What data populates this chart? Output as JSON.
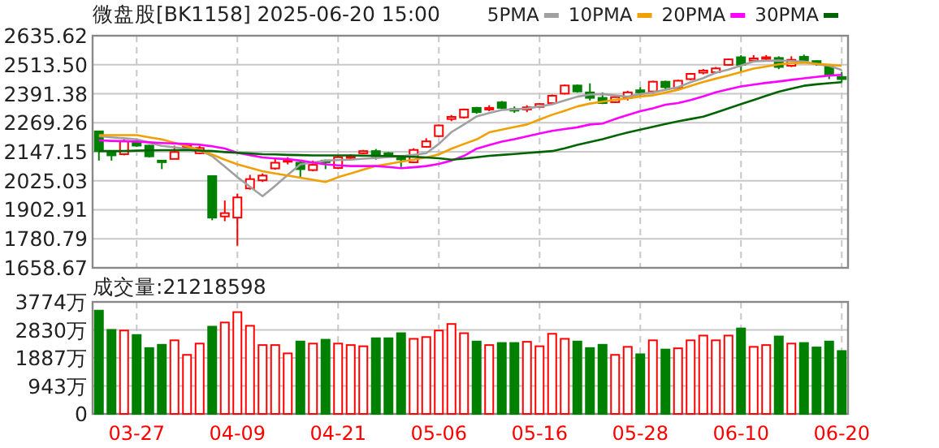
{
  "chart_data": [
    {
      "type": "candlestick",
      "title": "微盘股[BK1158] 2025-06-20 15:00",
      "categories": [
        null,
        null,
        null,
        null,
        null,
        null,
        null,
        null,
        null,
        null,
        null,
        null,
        null,
        null,
        null,
        null,
        null,
        null,
        null,
        null,
        null,
        null,
        null,
        null,
        null,
        null,
        null,
        null,
        null,
        null,
        null,
        null,
        null,
        null,
        null,
        null,
        null,
        null,
        null,
        null,
        null,
        null,
        null,
        null,
        null,
        null,
        null,
        null,
        null,
        null,
        null,
        null,
        null,
        null,
        null,
        null,
        null,
        null,
        null,
        null
      ],
      "ohlc": [
        [
          2233,
          2233,
          2110,
          2150
        ],
        [
          2144,
          2144,
          2110,
          2132
        ],
        [
          2137,
          2200,
          2132,
          2191
        ],
        [
          2191,
          2195,
          2168,
          2173
        ],
        [
          2173,
          2177,
          2123,
          2128
        ],
        [
          2110,
          2110,
          2074,
          2106
        ],
        [
          2117,
          2173,
          2117,
          2146
        ],
        [
          2170,
          2180,
          2166,
          2172
        ],
        [
          2141,
          2173,
          2137,
          2163
        ],
        [
          2045,
          2045,
          1859,
          1870
        ],
        [
          1875,
          1942,
          1855,
          1889
        ],
        [
          1870,
          1971,
          1752,
          1955
        ],
        [
          1993,
          2050,
          1988,
          2032
        ],
        [
          2027,
          2056,
          2020,
          2047
        ],
        [
          2077,
          2117,
          2072,
          2101
        ],
        [
          2106,
          2124,
          2094,
          2112
        ],
        [
          2101,
          2110,
          2038,
          2074
        ],
        [
          2070,
          2110,
          2065,
          2092
        ],
        [
          2110,
          2114,
          2074,
          2106
        ],
        [
          2079,
          2132,
          2074,
          2124
        ],
        [
          2124,
          2137,
          2114,
          2128
        ],
        [
          2141,
          2155,
          2137,
          2150
        ],
        [
          2150,
          2159,
          2114,
          2128
        ],
        [
          2141,
          2146,
          2132,
          2139
        ],
        [
          2124,
          2128,
          2083,
          2115
        ],
        [
          2103,
          2162,
          2099,
          2155
        ],
        [
          2168,
          2204,
          2164,
          2191
        ],
        [
          2213,
          2262,
          2208,
          2258
        ],
        [
          2285,
          2302,
          2276,
          2294
        ],
        [
          2292,
          2329,
          2287,
          2325
        ],
        [
          2332,
          2336,
          2307,
          2314
        ],
        [
          2325,
          2343,
          2318,
          2332
        ],
        [
          2355,
          2361,
          2327,
          2332
        ],
        [
          2327,
          2338,
          2311,
          2323
        ],
        [
          2325,
          2343,
          2314,
          2334
        ],
        [
          2336,
          2352,
          2331,
          2348
        ],
        [
          2352,
          2388,
          2347,
          2383
        ],
        [
          2392,
          2430,
          2388,
          2426
        ],
        [
          2426,
          2430,
          2396,
          2401
        ],
        [
          2397,
          2435,
          2363,
          2374
        ],
        [
          2374,
          2397,
          2348,
          2352
        ],
        [
          2356,
          2381,
          2352,
          2377
        ],
        [
          2374,
          2404,
          2363,
          2397
        ],
        [
          2406,
          2419,
          2383,
          2397
        ],
        [
          2401,
          2446,
          2392,
          2442
        ],
        [
          2442,
          2446,
          2408,
          2419
        ],
        [
          2415,
          2450,
          2406,
          2446
        ],
        [
          2453,
          2479,
          2448,
          2475
        ],
        [
          2480,
          2495,
          2473,
          2489
        ],
        [
          2482,
          2504,
          2477,
          2498
        ],
        [
          2513,
          2540,
          2509,
          2536
        ],
        [
          2545,
          2554,
          2484,
          2513
        ],
        [
          2531,
          2554,
          2527,
          2540
        ],
        [
          2538,
          2554,
          2531,
          2545
        ],
        [
          2542,
          2549,
          2495,
          2504
        ],
        [
          2509,
          2549,
          2504,
          2534
        ],
        [
          2547,
          2556,
          2520,
          2531
        ],
        [
          2529,
          2531,
          2509,
          2522
        ],
        [
          2509,
          2516,
          2453,
          2471
        ],
        [
          2462,
          2482,
          2439,
          2453
        ]
      ],
      "colors": [
        "#008000",
        "#008000",
        "#ff0000",
        "#008000",
        "#008000",
        "#008000",
        "#ff0000",
        "#ff0000",
        "#ff0000",
        "#008000",
        "#ff0000",
        "#ff0000",
        "#ff0000",
        "#ff0000",
        "#ff0000",
        "#ff0000",
        "#008000",
        "#ff0000",
        "#008000",
        "#ff0000",
        "#ff0000",
        "#ff0000",
        "#008000",
        "#008000",
        "#008000",
        "#ff0000",
        "#ff0000",
        "#ff0000",
        "#ff0000",
        "#ff0000",
        "#008000",
        "#ff0000",
        "#008000",
        "#008000",
        "#ff0000",
        "#ff0000",
        "#ff0000",
        "#ff0000",
        "#008000",
        "#008000",
        "#008000",
        "#ff0000",
        "#ff0000",
        "#008000",
        "#ff0000",
        "#008000",
        "#ff0000",
        "#ff0000",
        "#ff0000",
        "#ff0000",
        "#ff0000",
        "#008000",
        "#ff0000",
        "#ff0000",
        "#008000",
        "#ff0000",
        "#008000",
        "#008000",
        "#008000",
        "#008000"
      ],
      "series": [
        {
          "name": "5PMA",
          "type": "line",
          "color": "#a0a0a0",
          "values": [
            2213,
            2208,
            2204,
            2199,
            2186,
            2172,
            2166,
            2160,
            2155,
            2128,
            2085,
            2040,
            2000,
            1960,
            2004,
            2050,
            2094,
            2102,
            2110,
            2112,
            2114,
            2118,
            2121,
            2125,
            2128,
            2134,
            2141,
            2180,
            2230,
            2262,
            2296,
            2310,
            2323,
            2326,
            2329,
            2338,
            2347,
            2363,
            2379,
            2388,
            2390,
            2384,
            2379,
            2390,
            2397,
            2408,
            2419,
            2440,
            2457,
            2480,
            2493,
            2510,
            2527,
            2530,
            2531,
            2529,
            2527,
            2515,
            2509,
            2491
          ]
        },
        {
          "name": "10PMA",
          "type": "line",
          "color": "#f0a000",
          "values": [
            2217,
            2217,
            2217,
            2217,
            2208,
            2199,
            2185,
            2170,
            2155,
            2135,
            2114,
            2094,
            2080,
            2065,
            2056,
            2047,
            2038,
            2029,
            2020,
            2040,
            2056,
            2072,
            2087,
            2096,
            2105,
            2114,
            2123,
            2136,
            2160,
            2180,
            2199,
            2229,
            2240,
            2251,
            2262,
            2283,
            2303,
            2320,
            2338,
            2350,
            2358,
            2366,
            2372,
            2380,
            2385,
            2396,
            2408,
            2425,
            2441,
            2455,
            2468,
            2483,
            2497,
            2506,
            2515,
            2520,
            2522,
            2518,
            2513,
            2509
          ]
        },
        {
          "name": "20PMA",
          "type": "line",
          "color": "#ff00ff",
          "values": [
            2195,
            2193,
            2192,
            2190,
            2187,
            2184,
            2182,
            2180,
            2177,
            2170,
            2161,
            2143,
            2133,
            2123,
            2119,
            2116,
            2110,
            2102,
            2094,
            2090,
            2087,
            2087,
            2087,
            2083,
            2078,
            2082,
            2087,
            2096,
            2110,
            2130,
            2160,
            2175,
            2190,
            2200,
            2212,
            2224,
            2235,
            2243,
            2250,
            2262,
            2266,
            2285,
            2302,
            2318,
            2330,
            2345,
            2352,
            2365,
            2380,
            2397,
            2410,
            2422,
            2430,
            2437,
            2443,
            2450,
            2456,
            2462,
            2468,
            2471
          ]
        },
        {
          "name": "30PMA",
          "type": "line",
          "color": "#006400",
          "values": [
            2150,
            2150,
            2150,
            2152,
            2153,
            2154,
            2154,
            2155,
            2152,
            2150,
            2146,
            2143,
            2140,
            2137,
            2136,
            2134,
            2133,
            2132,
            2132,
            2132,
            2132,
            2131,
            2130,
            2129,
            2128,
            2126,
            2123,
            2120,
            2114,
            2118,
            2124,
            2130,
            2134,
            2138,
            2142,
            2146,
            2150,
            2162,
            2176,
            2188,
            2200,
            2215,
            2228,
            2240,
            2252,
            2264,
            2275,
            2285,
            2295,
            2312,
            2330,
            2348,
            2365,
            2383,
            2400,
            2413,
            2425,
            2431,
            2436,
            2440
          ]
        }
      ],
      "ylim": [
        1658.67,
        2635.62
      ],
      "yticks": [
        1658.67,
        1780.79,
        1902.91,
        2025.03,
        2147.15,
        2269.26,
        2391.38,
        {
          "value": 2513.5,
          "label": "2513.50"
        },
        2635.62
      ],
      "grid": true,
      "legend": "top",
      "tick_labels": "y"
    },
    {
      "type": "bar",
      "title": "成交量:21218598",
      "categories": [
        null,
        null,
        null,
        "03-27",
        null,
        null,
        null,
        null,
        null,
        null,
        null,
        "04-09",
        null,
        null,
        null,
        null,
        null,
        null,
        null,
        "04-21",
        null,
        null,
        null,
        null,
        null,
        null,
        null,
        "05-06",
        null,
        null,
        null,
        null,
        null,
        null,
        null,
        "05-16",
        null,
        null,
        null,
        null,
        null,
        null,
        null,
        "05-28",
        null,
        null,
        null,
        null,
        null,
        null,
        null,
        "06-10",
        null,
        null,
        null,
        null,
        null,
        null,
        null,
        "06-20"
      ],
      "values": [
        3480,
        2830,
        2810,
        2660,
        2220,
        2330,
        2480,
        1990,
        2370,
        2940,
        3080,
        3430,
        2970,
        2320,
        2320,
        2040,
        2440,
        2370,
        2500,
        2370,
        2320,
        2280,
        2550,
        2550,
        2720,
        2530,
        2590,
        2810,
        3030,
        2720,
        2440,
        2320,
        2390,
        2390,
        2430,
        2280,
        2700,
        2530,
        2440,
        2220,
        2330,
        1990,
        2260,
        2010,
        2480,
        2170,
        2210,
        2480,
        2640,
        2480,
        2640,
        2880,
        2260,
        2320,
        2610,
        2370,
        2390,
        2240,
        2440,
        2120
      ],
      "colors": [
        "#008000",
        "#008000",
        "#ff0000",
        "#008000",
        "#008000",
        "#008000",
        "#ff0000",
        "#ff0000",
        "#ff0000",
        "#008000",
        "#ff0000",
        "#ff0000",
        "#ff0000",
        "#ff0000",
        "#ff0000",
        "#ff0000",
        "#008000",
        "#ff0000",
        "#008000",
        "#ff0000",
        "#ff0000",
        "#ff0000",
        "#008000",
        "#008000",
        "#008000",
        "#ff0000",
        "#ff0000",
        "#ff0000",
        "#ff0000",
        "#ff0000",
        "#008000",
        "#ff0000",
        "#008000",
        "#008000",
        "#ff0000",
        "#ff0000",
        "#ff0000",
        "#ff0000",
        "#008000",
        "#008000",
        "#008000",
        "#ff0000",
        "#ff0000",
        "#008000",
        "#ff0000",
        "#008000",
        "#ff0000",
        "#ff0000",
        "#ff0000",
        "#ff0000",
        "#ff0000",
        "#008000",
        "#ff0000",
        "#ff0000",
        "#008000",
        "#ff0000",
        "#008000",
        "#008000",
        "#008000",
        "#008000"
      ],
      "ylim": [
        0,
        3774
      ],
      "yticks": [
        0,
        {
          "value": 943,
          "label": "943万"
        },
        {
          "value": 1887,
          "label": "1887万"
        },
        {
          "value": 2830,
          "label": "2830万"
        },
        {
          "value": 3774,
          "label": "3774万"
        }
      ],
      "grid": true
    }
  ]
}
